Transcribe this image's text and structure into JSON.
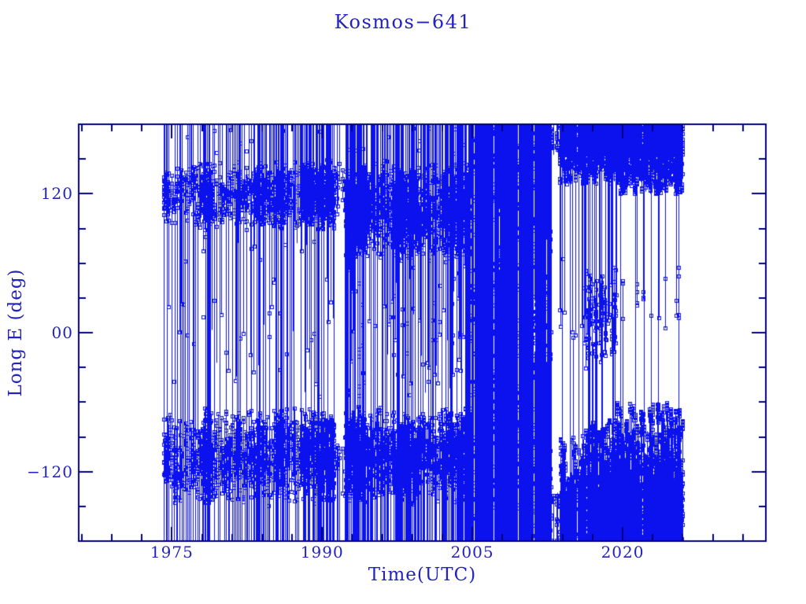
{
  "page": {
    "background": "#ffffff"
  },
  "chart_data": {
    "type": "scatter",
    "title": "Kosmos−641",
    "xlabel": "Time(UTC)",
    "ylabel": "Long E (deg)",
    "legend": "none",
    "grid": "off",
    "x_axis": {
      "lim": [
        1965.7,
        2034.3
      ],
      "major_ticks": [
        1975,
        1990,
        2005,
        2020
      ],
      "major_labels": [
        "1975",
        "1990",
        "2005",
        "2020"
      ],
      "minor_step": 3
    },
    "y_axis": {
      "lim": [
        -180,
        180
      ],
      "major_ticks": [
        -120,
        0,
        120
      ],
      "major_labels": [
        "−120",
        "00",
        "120"
      ],
      "minor_step": 30
    },
    "style": {
      "data_color": "#0c12ee",
      "axis_color": "#000080",
      "text_color": "#2424bd",
      "background": "#ffffff",
      "marker": "open-square",
      "marker_size": 5,
      "connector": "vertical-lines"
    },
    "seed": 641,
    "segments": [
      {
        "pattern": "libration",
        "t0": 1974.25,
        "t1": 1977.2,
        "cols_per_year": 9,
        "upper_band": [
          92,
          148
        ],
        "lower_band": [
          -148,
          -66
        ],
        "nu": [
          2,
          7
        ],
        "nl": [
          3,
          8
        ],
        "p_full": 0.07,
        "p_top_wrap": 0.5,
        "p_bottom_wrap": 0.55,
        "p_cross": 0.1,
        "p_hang": 0.15,
        "p_mid": 0.06,
        "mid_range": [
          -55,
          85
        ],
        "bursts": [
          {
            "t0": 1974.25,
            "t1": 1974.7,
            "mult": 2.2
          }
        ]
      },
      {
        "pattern": "libration",
        "t0": 1977.2,
        "t1": 1991.2,
        "cols_per_year": 10,
        "upper_band": [
          88,
          150
        ],
        "lower_band": [
          -150,
          -64
        ],
        "nu": [
          2,
          8
        ],
        "nl": [
          3,
          8
        ],
        "p_full": 0.1,
        "p_top_wrap": 0.5,
        "p_bottom_wrap": 0.55,
        "p_cross": 0.12,
        "p_hang": 0.18,
        "p_mid": 0.06,
        "mid_range": [
          -55,
          85
        ],
        "bursts": [
          {
            "t0": 1978.0,
            "t1": 1979.2,
            "mult": 2.6
          },
          {
            "t0": 1981.4,
            "t1": 1982.0,
            "mult": 1.7
          },
          {
            "t0": 1983.3,
            "t1": 1984.3,
            "mult": 2.0
          },
          {
            "t0": 1985.4,
            "t1": 1986.5,
            "mult": 2.0
          },
          {
            "t0": 1988.0,
            "t1": 1991.2,
            "mult": 2.4
          }
        ]
      },
      {
        "pattern": "libration",
        "t0": 1991.2,
        "t1": 1992.3,
        "cols_per_year": 5,
        "upper_band": [
          95,
          150
        ],
        "lower_band": [
          -145,
          -70
        ],
        "nu": [
          2,
          5
        ],
        "nl": [
          2,
          5
        ],
        "p_full": 0.05,
        "p_top_wrap": 0.4,
        "p_bottom_wrap": 0.45,
        "p_cross": 0.08,
        "p_hang": 0.1,
        "p_mid": 0.04,
        "mid_range": [
          -50,
          80
        ]
      },
      {
        "pattern": "libration",
        "t0": 1992.3,
        "t1": 2004.7,
        "cols_per_year": 14,
        "upper_band": [
          58,
          150
        ],
        "lower_band": [
          -150,
          -62
        ],
        "nu": [
          3,
          9
        ],
        "nl": [
          3,
          8
        ],
        "p_full": 0.13,
        "p_top_wrap": 0.55,
        "p_bottom_wrap": 0.6,
        "p_cross": 0.15,
        "p_hang": 0.3,
        "p_mid": 0.07,
        "mid_range": [
          -55,
          58
        ],
        "bursts": [
          {
            "t0": 1992.4,
            "t1": 1994.3,
            "mult": 1.9
          },
          {
            "t0": 1997.0,
            "t1": 1999.2,
            "mult": 1.6
          },
          {
            "t0": 2002.2,
            "t1": 2004.7,
            "mult": 2.2
          }
        ]
      },
      {
        "pattern": "solid",
        "t0": 2004.7,
        "t1": 2012.8,
        "cols_per_year": 26,
        "n": [
          3,
          9
        ],
        "p_full": 0.82,
        "gap_prob": 0.1
      },
      {
        "pattern": "split",
        "t0": 2012.8,
        "t1": 2013.7,
        "cols_per_year": 6,
        "upper_band": [
          116,
          180
        ],
        "lower_band": [
          -180,
          -72
        ],
        "top_fill": 0.5,
        "bot_fill": 0.5,
        "nu": [
          2,
          5
        ],
        "nl": [
          2,
          5
        ],
        "p_full": 0.08,
        "p_mid": 0.08,
        "mid_range": [
          -45,
          70
        ],
        "mid_cluster": false
      },
      {
        "pattern": "split",
        "t0": 2013.7,
        "t1": 2016.2,
        "cols_per_year": 18,
        "upper_band": [
          116,
          180
        ],
        "lower_band": [
          -180,
          -72
        ],
        "top_fill": 0.75,
        "bot_fill": 0.8,
        "nu": [
          3,
          8
        ],
        "nl": [
          3,
          8
        ],
        "p_full": 0.05,
        "p_mid": 0.1,
        "mid_range": [
          -45,
          70
        ],
        "mid_cluster": false
      },
      {
        "pattern": "split",
        "t0": 2016.2,
        "t1": 2019.4,
        "cols_per_year": 20,
        "upper_band": [
          120,
          180
        ],
        "lower_band": [
          -180,
          -66
        ],
        "top_fill": 0.8,
        "bot_fill": 0.85,
        "nu": [
          3,
          8
        ],
        "nl": [
          4,
          9
        ],
        "p_full": 0.06,
        "p_mid": 0.5,
        "mid_range": [
          -35,
          62
        ],
        "mid_cluster": true,
        "bursts": [
          {
            "t0": 2016.2,
            "t1": 2017.4,
            "mult": 1.8
          }
        ]
      },
      {
        "pattern": "split",
        "t0": 2019.4,
        "t1": 2026.0,
        "cols_per_year": 22,
        "upper_band": [
          120,
          180
        ],
        "lower_band": [
          -180,
          -58
        ],
        "top_fill": 0.95,
        "bot_fill": 0.9,
        "nu": [
          4,
          9
        ],
        "nl": [
          5,
          11
        ],
        "p_full": 0.05,
        "p_mid": 0.07,
        "mid_range": [
          0,
          60
        ],
        "mid_cluster": true
      }
    ]
  }
}
